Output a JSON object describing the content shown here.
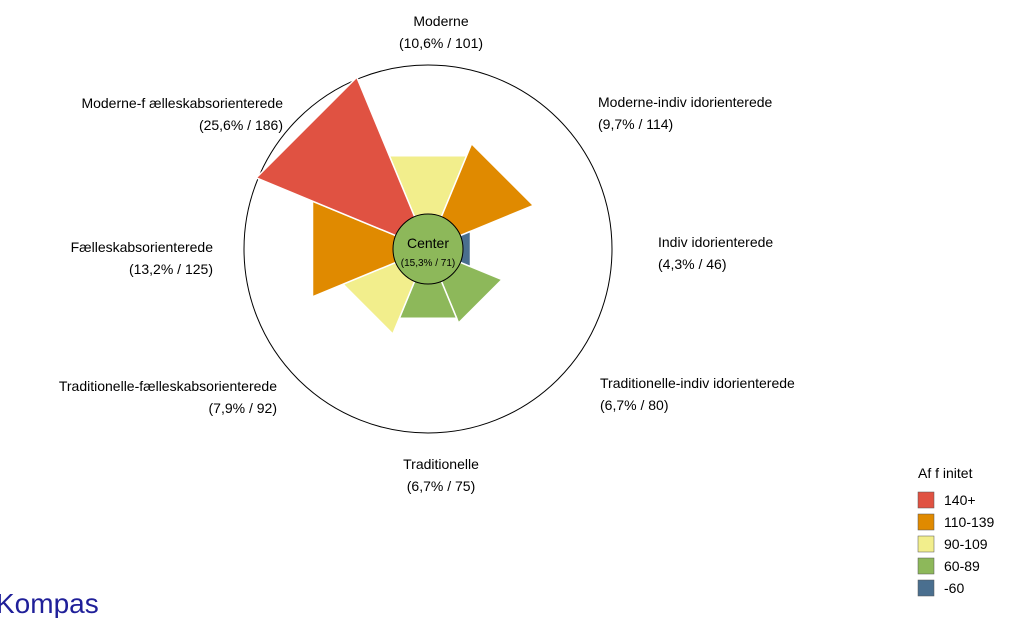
{
  "page_title": "Kompas",
  "chart_data": {
    "type": "polar-bar",
    "center": {
      "label": "Center",
      "value_label": "(15,3% / 71)",
      "share_pct": 15.3,
      "index": 71,
      "color": "#8db85a"
    },
    "segments": [
      {
        "name": "Moderne",
        "label": "(10,6% / 101)",
        "share_pct": 10.6,
        "index": 101,
        "color": "#f2ee8c"
      },
      {
        "name": "Moderne-indiv idorienterede",
        "label": "(9,7% / 114)",
        "share_pct": 9.7,
        "index": 114,
        "color": "#e08a00"
      },
      {
        "name": "Indiv idorienterede",
        "label": "(4,3% / 46)",
        "share_pct": 4.3,
        "index": 46,
        "color": "#4a6f8f"
      },
      {
        "name": "Traditionelle-indiv idorienterede",
        "label": "(6,7% / 80)",
        "share_pct": 6.7,
        "index": 80,
        "color": "#8db85a"
      },
      {
        "name": "Traditionelle",
        "label": "(6,7% / 75)",
        "share_pct": 6.7,
        "index": 75,
        "color": "#8db85a"
      },
      {
        "name": "Traditionelle-fælleskabsorienterede",
        "label": "(7,9% / 92)",
        "share_pct": 7.9,
        "index": 92,
        "color": "#f2ee8c"
      },
      {
        "name": "Fælleskabsorienterede",
        "label": "(13,2% / 125)",
        "share_pct": 13.2,
        "index": 125,
        "color": "#e08a00"
      },
      {
        "name": "Moderne-f ælleskabsorienterede",
        "label": "(25,6% / 186)",
        "share_pct": 25.6,
        "index": 186,
        "color": "#e05242"
      }
    ],
    "legend": {
      "title": "Af f initet",
      "placement": "bottom-right",
      "items": [
        {
          "label": "140+",
          "color": "#e05242"
        },
        {
          "label": "110-139",
          "color": "#e08a00"
        },
        {
          "label": "90-109",
          "color": "#f2ee8c"
        },
        {
          "label": "60-89",
          "color": "#8db85a"
        },
        {
          "label": "-60",
          "color": "#4a6f8f"
        }
      ]
    }
  }
}
